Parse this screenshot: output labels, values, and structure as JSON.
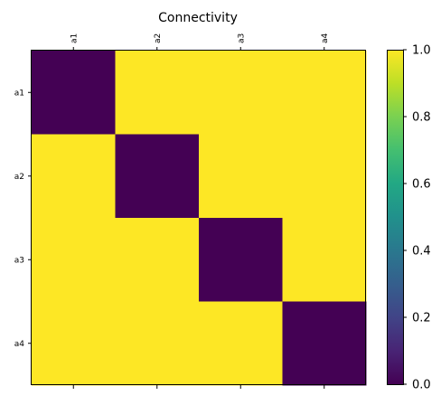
{
  "chart_data": {
    "type": "heatmap",
    "title": "Connectivity",
    "x_labels": [
      "a1",
      "a2",
      "a3",
      "a4"
    ],
    "y_labels": [
      "a1",
      "a2",
      "a3",
      "a4"
    ],
    "values": [
      [
        0,
        1,
        1,
        1
      ],
      [
        1,
        0,
        1,
        1
      ],
      [
        1,
        1,
        0,
        1
      ],
      [
        1,
        1,
        1,
        0
      ]
    ],
    "colorbar": {
      "min": 0.0,
      "max": 1.0,
      "ticks": [
        "0.0",
        "0.2",
        "0.4",
        "0.6",
        "0.8",
        "1.0"
      ],
      "colormap": "viridis"
    },
    "colors": {
      "low": "#440154",
      "high": "#fde725"
    },
    "grid": false,
    "x_tick_position": "top"
  }
}
